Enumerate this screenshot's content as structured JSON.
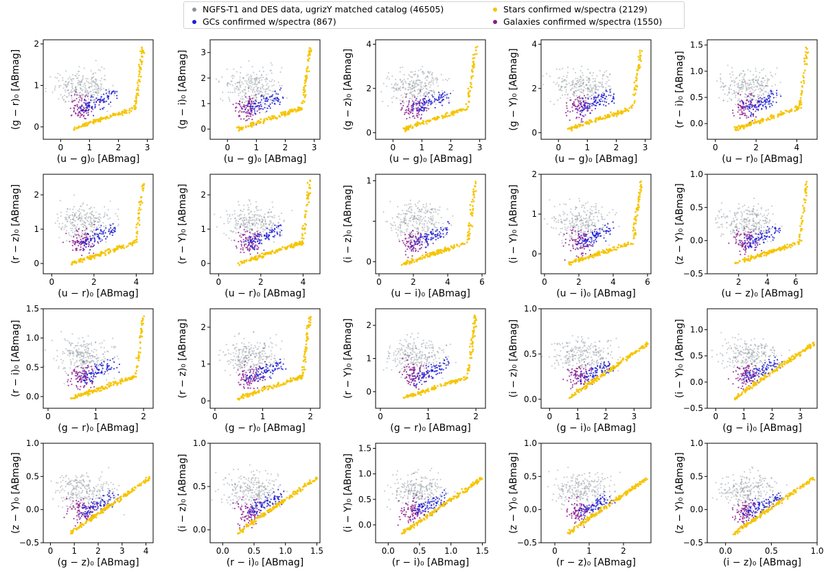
{
  "legend": {
    "items": [
      {
        "label": "NGFS-T1 and DES data, ugrizY matched catalog (46505)",
        "color": "#8a929a"
      },
      {
        "label": "GCs confirmed w/spectra (867)",
        "color": "#1f1fd6"
      },
      {
        "label": "Stars confirmed w/spectra (2129)",
        "color": "#f5c400"
      },
      {
        "label": "Galaxies confirmed w/spectra (1550)",
        "color": "#8b1a8b"
      }
    ]
  },
  "colors": {
    "data": "#8a929a",
    "gc": "#1f1fd6",
    "star": "#f5c400",
    "galaxy": "#8b1a8b"
  },
  "chart_data": [
    {
      "type": "scatter",
      "xlabel": "(u − g)₀ [ABmag]",
      "ylabel": "(g − r)₀ [ABmag]",
      "xlim": [
        -0.6,
        3.2
      ],
      "ylim": [
        -0.3,
        2.1
      ],
      "xticks": [
        0,
        1,
        2,
        3
      ],
      "xtick_labels": [
        "0",
        "1",
        "2",
        "3"
      ],
      "yticks": [
        0,
        1,
        2
      ],
      "ytick_labels": [
        "0",
        "1",
        "2"
      ]
    },
    {
      "type": "scatter",
      "xlabel": "(u − g)₀ [ABmag]",
      "ylabel": "(g − i)₀ [ABmag]",
      "xlim": [
        -0.6,
        3.2
      ],
      "ylim": [
        -0.4,
        3.5
      ],
      "xticks": [
        0,
        1,
        2,
        3
      ],
      "xtick_labels": [
        "0",
        "1",
        "2",
        "3"
      ],
      "yticks": [
        0,
        1,
        2,
        3
      ],
      "ytick_labels": [
        "0",
        "1",
        "2",
        "3"
      ]
    },
    {
      "type": "scatter",
      "xlabel": "(u − g)₀ [ABmag]",
      "ylabel": "(g − z)₀ [ABmag]",
      "xlim": [
        -0.6,
        3.2
      ],
      "ylim": [
        -0.3,
        4.2
      ],
      "xticks": [
        0,
        1,
        2,
        3
      ],
      "xtick_labels": [
        "0",
        "1",
        "2",
        "3"
      ],
      "yticks": [
        0,
        2,
        4
      ],
      "ytick_labels": [
        "0",
        "2",
        "4"
      ]
    },
    {
      "type": "scatter",
      "xlabel": "(u − g)₀ [ABmag]",
      "ylabel": "(g − Y)₀ [ABmag]",
      "xlim": [
        -0.6,
        3.2
      ],
      "ylim": [
        -0.3,
        4.2
      ],
      "xticks": [
        0,
        1,
        2,
        3
      ],
      "xtick_labels": [
        "0",
        "1",
        "2",
        "3"
      ],
      "yticks": [
        0,
        2,
        4
      ],
      "ytick_labels": [
        "0",
        "2",
        "4"
      ]
    },
    {
      "type": "scatter",
      "xlabel": "(u − r)₀ [ABmag]",
      "ylabel": "(r − i)₀ [ABmag]",
      "xlim": [
        -0.4,
        5.0
      ],
      "ylim": [
        -0.3,
        1.6
      ],
      "xticks": [
        0,
        2,
        4
      ],
      "xtick_labels": [
        "0",
        "2",
        "4"
      ],
      "yticks": [
        0,
        0.5,
        1,
        1.5
      ],
      "ytick_labels": [
        "0.0",
        "0.5",
        "1.0",
        "1.5"
      ]
    },
    {
      "type": "scatter",
      "xlabel": "(u − r)₀ [ABmag]",
      "ylabel": "(r − z)₀ [ABmag]",
      "xlim": [
        -0.4,
        4.8
      ],
      "ylim": [
        -0.3,
        2.6
      ],
      "xticks": [
        0,
        2,
        4
      ],
      "xtick_labels": [
        "0",
        "2",
        "4"
      ],
      "yticks": [
        0,
        1,
        2
      ],
      "ytick_labels": [
        "0",
        "1",
        "2"
      ]
    },
    {
      "type": "scatter",
      "xlabel": "(u − r)₀ [ABmag]",
      "ylabel": "(r − Y)₀ [ABmag]",
      "xlim": [
        -0.4,
        4.8
      ],
      "ylim": [
        -0.3,
        2.6
      ],
      "xticks": [
        0,
        2,
        4
      ],
      "xtick_labels": [
        "0",
        "2",
        "4"
      ],
      "yticks": [
        0,
        1,
        2
      ],
      "ytick_labels": [
        "0",
        "1",
        "2"
      ]
    },
    {
      "type": "scatter",
      "xlabel": "(u − i)₀ [ABmag]",
      "ylabel": "(i − z)₀ [ABmag]",
      "xlim": [
        -0.2,
        6.2
      ],
      "ylim": [
        -0.15,
        1.08
      ],
      "xticks": [
        0,
        2,
        4,
        6
      ],
      "xtick_labels": [
        "0",
        "2",
        "4",
        "6"
      ],
      "yticks": [
        0,
        0.5,
        1
      ],
      "ytick_labels": [
        "0",
        "",
        "1"
      ]
    },
    {
      "type": "scatter",
      "xlabel": "(u − i)₀ [ABmag]",
      "ylabel": "(i − Y)₀ [ABmag]",
      "xlim": [
        -0.2,
        6.2
      ],
      "ylim": [
        -0.5,
        2.0
      ],
      "xticks": [
        0,
        2,
        4,
        6
      ],
      "xtick_labels": [
        "0",
        "2",
        "4",
        "6"
      ],
      "yticks": [
        0,
        1,
        2
      ],
      "ytick_labels": [
        "0",
        "1",
        "2"
      ]
    },
    {
      "type": "scatter",
      "xlabel": "(u − z)₀ [ABmag]",
      "ylabel": "(z − Y)₀ [ABmag]",
      "xlim": [
        -0.2,
        7.5
      ],
      "ylim": [
        -0.5,
        1.0
      ],
      "xticks": [
        2,
        4,
        6
      ],
      "xtick_labels": [
        "2",
        "4",
        "6"
      ],
      "yticks": [
        -0.5,
        0,
        0.5,
        1
      ],
      "ytick_labels": [
        "−0.5",
        "0.0",
        "0.5",
        "1.0"
      ]
    },
    {
      "type": "scatter",
      "xlabel": "(g − r)₀ [ABmag]",
      "ylabel": "(r − i)₀ [ABmag]",
      "xlim": [
        -0.1,
        2.2
      ],
      "ylim": [
        -0.2,
        1.5
      ],
      "xticks": [
        0,
        1,
        2
      ],
      "xtick_labels": [
        "0",
        "1",
        "2"
      ],
      "yticks": [
        0,
        0.5,
        1,
        1.5
      ],
      "ytick_labels": [
        "0.0",
        "0.5",
        "1.0",
        "1.5"
      ]
    },
    {
      "type": "scatter",
      "xlabel": "(g − r)₀ [ABmag]",
      "ylabel": "(r − z)₀ [ABmag]",
      "xlim": [
        -0.1,
        2.2
      ],
      "ylim": [
        -0.2,
        2.5
      ],
      "xticks": [
        0,
        1,
        2
      ],
      "xtick_labels": [
        "0",
        "1",
        "2"
      ],
      "yticks": [
        0,
        1,
        2
      ],
      "ytick_labels": [
        "0",
        "1",
        "2"
      ]
    },
    {
      "type": "scatter",
      "xlabel": "(g − r)₀ [ABmag]",
      "ylabel": "(r − Y)₀ [ABmag]",
      "xlim": [
        -0.1,
        2.2
      ],
      "ylim": [
        -0.5,
        2.5
      ],
      "xticks": [
        0,
        1,
        2
      ],
      "xtick_labels": [
        "0",
        "1",
        "2"
      ],
      "yticks": [
        0,
        1,
        2
      ],
      "ytick_labels": [
        "0",
        "1",
        "2"
      ]
    },
    {
      "type": "scatter",
      "xlabel": "(g − i)₀ [ABmag]",
      "ylabel": "(i − z)₀ [ABmag]",
      "xlim": [
        -0.3,
        3.6
      ],
      "ylim": [
        -0.1,
        1.0
      ],
      "xticks": [
        0,
        1,
        2,
        3
      ],
      "xtick_labels": [
        "0",
        "1",
        "2",
        "3"
      ],
      "yticks": [
        0,
        0.5,
        1
      ],
      "ytick_labels": [
        "0.0",
        "0.5",
        "1.0"
      ]
    },
    {
      "type": "scatter",
      "xlabel": "(g − i)₀ [ABmag]",
      "ylabel": "(i − Y)₀ [ABmag]",
      "xlim": [
        -0.3,
        3.6
      ],
      "ylim": [
        -0.5,
        1.4
      ],
      "xticks": [
        0,
        1,
        2,
        3
      ],
      "xtick_labels": [
        "0",
        "1",
        "2",
        "3"
      ],
      "yticks": [
        -0.5,
        0,
        0.5,
        1
      ],
      "ytick_labels": [
        "−0.5",
        "0.0",
        "0.5",
        "1.0"
      ]
    },
    {
      "type": "scatter",
      "xlabel": "(g − z)₀ [ABmag]",
      "ylabel": "(z − Y)₀ [ABmag]",
      "xlim": [
        -0.3,
        4.3
      ],
      "ylim": [
        -0.5,
        1.0
      ],
      "xticks": [
        0,
        1,
        2,
        3,
        4
      ],
      "xtick_labels": [
        "0",
        "1",
        "2",
        "3",
        "4"
      ],
      "yticks": [
        -0.5,
        0,
        0.5,
        1
      ],
      "ytick_labels": [
        "−0.5",
        "0.0",
        "0.5",
        "1.0"
      ]
    },
    {
      "type": "scatter",
      "xlabel": "(r − i)₀ [ABmag]",
      "ylabel": "(i − z)₀ [ABmag]",
      "xlim": [
        -0.2,
        1.55
      ],
      "ylim": [
        -0.15,
        1.0
      ],
      "xticks": [
        0,
        0.5,
        1,
        1.5
      ],
      "xtick_labels": [
        "0.0",
        "0.5",
        "1.0",
        "1.5"
      ],
      "yticks": [
        0,
        0.5,
        1
      ],
      "ytick_labels": [
        "0.0",
        "0.5",
        "1.0"
      ]
    },
    {
      "type": "scatter",
      "xlabel": "(r − i)₀ [ABmag]",
      "ylabel": "(i − Y)₀ [ABmag]",
      "xlim": [
        -0.2,
        1.55
      ],
      "ylim": [
        -0.35,
        1.6
      ],
      "xticks": [
        0,
        0.5,
        1,
        1.5
      ],
      "xtick_labels": [
        "0.0",
        "0.5",
        "1.0",
        "1.5"
      ],
      "yticks": [
        0,
        0.5,
        1,
        1.5
      ],
      "ytick_labels": [
        "0.0",
        "0.5",
        "1.0",
        "1.5"
      ]
    },
    {
      "type": "scatter",
      "xlabel": "(r − z)₀ [ABmag]",
      "ylabel": "(z − Y)₀ [ABmag]",
      "xlim": [
        -0.4,
        2.8
      ],
      "ylim": [
        -0.5,
        1.0
      ],
      "xticks": [
        0,
        1,
        2
      ],
      "xtick_labels": [
        "0",
        "1",
        "2"
      ],
      "yticks": [
        -0.5,
        0,
        0.5,
        1
      ],
      "ytick_labels": [
        "−0.5",
        "0.0",
        "0.5",
        "1.0"
      ]
    },
    {
      "type": "scatter",
      "xlabel": "(i − z)₀ [ABmag]",
      "ylabel": "(z − Y)₀ [ABmag]",
      "xlim": [
        -0.2,
        1.0
      ],
      "ylim": [
        -0.5,
        1.0
      ],
      "xticks": [
        0,
        0.5,
        1
      ],
      "xtick_labels": [
        "0.0",
        "0.5",
        "1.0"
      ],
      "yticks": [
        -0.5,
        0,
        0.5,
        1
      ],
      "ytick_labels": [
        "−0.5",
        "0.0",
        "0.5",
        "1.0"
      ]
    }
  ]
}
